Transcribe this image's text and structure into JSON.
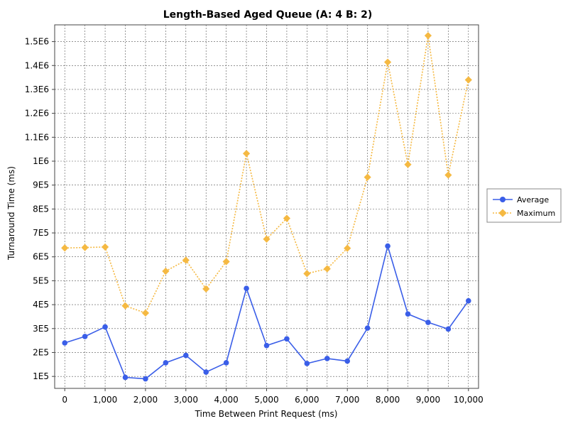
{
  "chart_data": {
    "type": "line",
    "title": "Length-Based Aged Queue (A: 4 B: 2)",
    "xlabel": "Time Between Print Request (ms)",
    "ylabel": "Turnaround Time (ms)",
    "xlim": [
      -250,
      10250
    ],
    "ylim": [
      50000,
      1570000
    ],
    "x": [
      0,
      500,
      1000,
      1500,
      2000,
      2500,
      3000,
      3500,
      4000,
      4500,
      5000,
      5500,
      6000,
      6500,
      7000,
      7500,
      8000,
      8500,
      9000,
      9500,
      10000
    ],
    "x_ticks": [
      {
        "value": 0,
        "label": "0"
      },
      {
        "value": 1000,
        "label": "1,000"
      },
      {
        "value": 2000,
        "label": "2,000"
      },
      {
        "value": 3000,
        "label": "3,000"
      },
      {
        "value": 4000,
        "label": "4,000"
      },
      {
        "value": 5000,
        "label": "5,000"
      },
      {
        "value": 6000,
        "label": "6,000"
      },
      {
        "value": 7000,
        "label": "7,000"
      },
      {
        "value": 8000,
        "label": "8,000"
      },
      {
        "value": 9000,
        "label": "9,000"
      },
      {
        "value": 10000,
        "label": "10,000"
      }
    ],
    "y_ticks": [
      {
        "value": 100000,
        "label": "1E5"
      },
      {
        "value": 200000,
        "label": "2E5"
      },
      {
        "value": 300000,
        "label": "3E5"
      },
      {
        "value": 400000,
        "label": "4E5"
      },
      {
        "value": 500000,
        "label": "5E5"
      },
      {
        "value": 600000,
        "label": "6E5"
      },
      {
        "value": 700000,
        "label": "7E5"
      },
      {
        "value": 800000,
        "label": "8E5"
      },
      {
        "value": 900000,
        "label": "9E5"
      },
      {
        "value": 1000000,
        "label": "1E6"
      },
      {
        "value": 1100000,
        "label": "1.1E6"
      },
      {
        "value": 1200000,
        "label": "1.2E6"
      },
      {
        "value": 1300000,
        "label": "1.3E6"
      },
      {
        "value": 1400000,
        "label": "1.4E6"
      },
      {
        "value": 1500000,
        "label": "1.5E6"
      }
    ],
    "series": [
      {
        "name": "Average",
        "color": "#3a5ee8",
        "marker": "circle",
        "line": "solid",
        "values": [
          240000,
          267000,
          307000,
          96000,
          90000,
          157000,
          188000,
          118000,
          157000,
          468000,
          229000,
          257000,
          154000,
          175000,
          164000,
          302000,
          645000,
          361000,
          326000,
          298000,
          416000
        ]
      },
      {
        "name": "Maximum",
        "color": "#f5b942",
        "marker": "diamond",
        "line": "dotted",
        "values": [
          637000,
          639000,
          641000,
          395000,
          365000,
          540000,
          586000,
          466000,
          580000,
          1032000,
          674000,
          761000,
          530000,
          550000,
          636000,
          933000,
          1414000,
          986000,
          1525000,
          942000,
          1340000
        ]
      }
    ],
    "grid": true,
    "legend_position": "right"
  }
}
